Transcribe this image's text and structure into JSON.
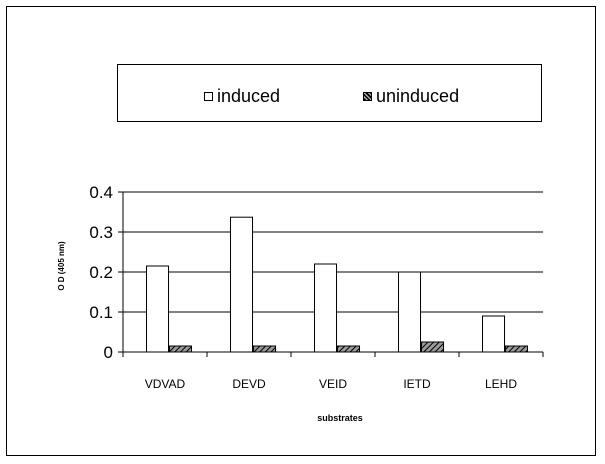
{
  "chart_data": {
    "type": "bar",
    "title": "",
    "xlabel": "substrates",
    "ylabel": "O D (405 nm)",
    "categories": [
      "VDVAD",
      "DEVD",
      "VEID",
      "IETD",
      "LEHD"
    ],
    "series": [
      {
        "name": "induced",
        "values": [
          0.215,
          0.337,
          0.22,
          0.2,
          0.09
        ],
        "fill": "#ffffff"
      },
      {
        "name": "uninduced",
        "values": [
          0.015,
          0.015,
          0.015,
          0.025,
          0.015
        ],
        "fill": "hatch"
      }
    ],
    "ylim": [
      0,
      0.4
    ],
    "yticks": [
      "0",
      "0.1",
      "0.2",
      "0.3",
      "0.4"
    ],
    "ytick_values": [
      0,
      0.1,
      0.2,
      0.3,
      0.4
    ],
    "grid": true,
    "legend_position": "top"
  },
  "legend": {
    "induced": "induced",
    "uninduced": "uninduced"
  }
}
